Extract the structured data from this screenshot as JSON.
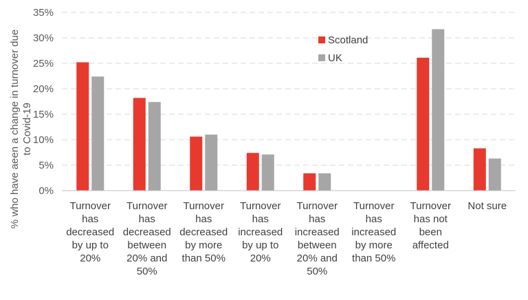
{
  "chart_data": {
    "type": "bar",
    "ylabel_lines": [
      "% who have aeen a change in turnover due",
      "to Covid-19"
    ],
    "ylim": [
      0,
      35
    ],
    "ytick_step": 5,
    "ytick_labels": [
      "0%",
      "5%",
      "10%",
      "15%",
      "20%",
      "25%",
      "30%",
      "35%"
    ],
    "grid": true,
    "legend_position": "top-right",
    "categories": [
      [
        "Turnover",
        "has",
        "decreased",
        "by up to",
        "20%"
      ],
      [
        "Turnover",
        "has",
        "decreased",
        "between",
        "20% and",
        "50%"
      ],
      [
        "Turnover",
        "has",
        "decreased",
        "by more",
        "than 50%"
      ],
      [
        "Turnover",
        "has",
        "increased",
        "by up to",
        "20%"
      ],
      [
        "Turnover",
        "has",
        "increased",
        "between",
        "20% and",
        "50%"
      ],
      [
        "Turnover",
        "has",
        "increased",
        "by more",
        "than 50%"
      ],
      [
        "Turnover",
        "has not",
        "been",
        "affected"
      ],
      [
        "Not sure"
      ]
    ],
    "series": [
      {
        "name": "Scotland",
        "color": "#e8392e",
        "values": [
          25.2,
          18.2,
          10.6,
          7.4,
          3.4,
          0,
          26.1,
          8.3
        ]
      },
      {
        "name": "UK",
        "color": "#a6a6a6",
        "values": [
          22.4,
          17.4,
          11.0,
          7.1,
          3.4,
          0,
          31.7,
          6.3
        ]
      }
    ]
  }
}
